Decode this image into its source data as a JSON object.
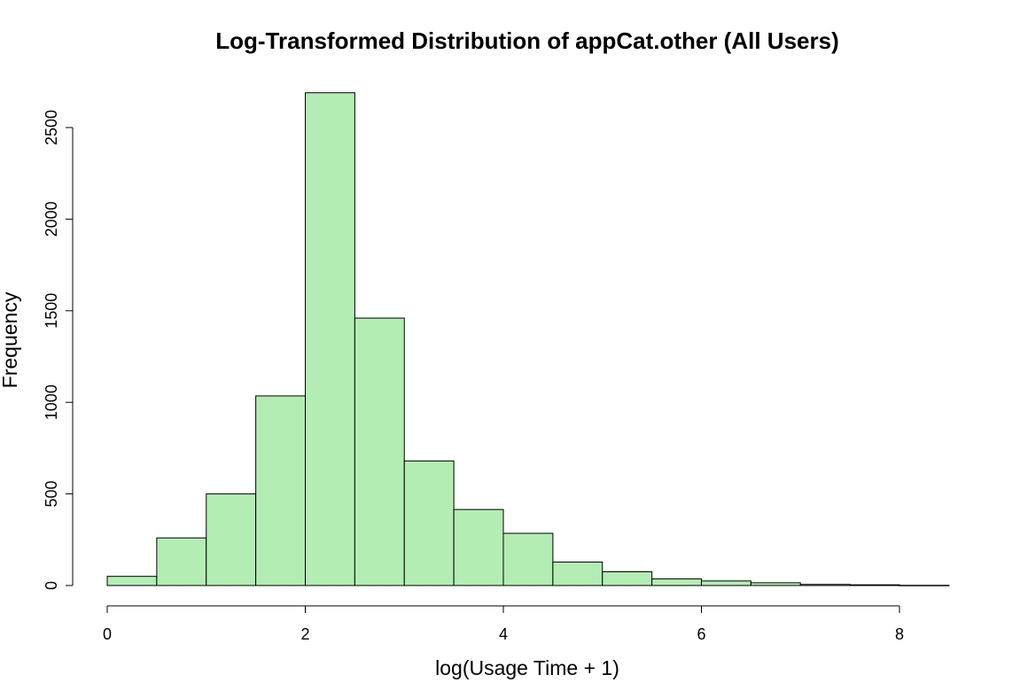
{
  "chart_data": {
    "type": "bar",
    "title": "Log-Transformed Distribution of appCat.other (All Users)",
    "xlabel": "log(Usage Time + 1)",
    "ylabel": "Frequency",
    "bar_color": "#b4edb4",
    "bins": [
      {
        "x0": 0.0,
        "x1": 0.5,
        "count": 50
      },
      {
        "x0": 0.5,
        "x1": 1.0,
        "count": 260
      },
      {
        "x0": 1.0,
        "x1": 1.5,
        "count": 500
      },
      {
        "x0": 1.5,
        "x1": 2.0,
        "count": 1035
      },
      {
        "x0": 2.0,
        "x1": 2.5,
        "count": 2690
      },
      {
        "x0": 2.5,
        "x1": 3.0,
        "count": 1460
      },
      {
        "x0": 3.0,
        "x1": 3.5,
        "count": 680
      },
      {
        "x0": 3.5,
        "x1": 4.0,
        "count": 415
      },
      {
        "x0": 4.0,
        "x1": 4.5,
        "count": 285
      },
      {
        "x0": 4.5,
        "x1": 5.0,
        "count": 128
      },
      {
        "x0": 5.0,
        "x1": 5.5,
        "count": 75
      },
      {
        "x0": 5.5,
        "x1": 6.0,
        "count": 36
      },
      {
        "x0": 6.0,
        "x1": 6.5,
        "count": 25
      },
      {
        "x0": 6.5,
        "x1": 7.0,
        "count": 15
      },
      {
        "x0": 7.0,
        "x1": 7.5,
        "count": 6
      },
      {
        "x0": 7.5,
        "x1": 8.0,
        "count": 4
      },
      {
        "x0": 8.0,
        "x1": 8.5,
        "count": 1
      }
    ],
    "xlim": [
      0,
      8.5
    ],
    "ylim": [
      0,
      2700
    ],
    "x_ticks": [
      0,
      2,
      4,
      6,
      8
    ],
    "x_tick_labels": [
      "0",
      "2",
      "4",
      "6",
      "8"
    ],
    "y_ticks": [
      0,
      500,
      1000,
      1500,
      2000,
      2500
    ],
    "y_tick_labels": [
      "0",
      "500",
      "1000",
      "1500",
      "2000",
      "2500"
    ],
    "grid": false,
    "legend": "none"
  }
}
